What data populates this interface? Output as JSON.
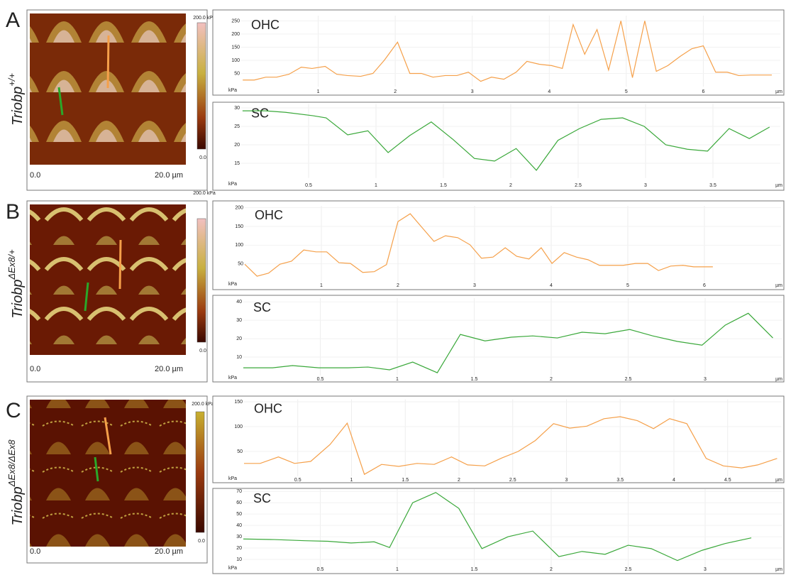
{
  "panels": [
    {
      "label": "A",
      "genotype": {
        "gene": "Triobp",
        "allele": "+/+"
      },
      "colorbar_max": "200.0 kPa",
      "colorbar_min": "0.0",
      "scale_start": "0.0",
      "scale_end": "20.0 µm"
    },
    {
      "label": "B",
      "genotype": {
        "gene": "Triobp",
        "allele": "ΔEx8/+"
      },
      "colorbar_max": "200.0 kPa",
      "colorbar_min": "0.0",
      "scale_start": "0.0",
      "scale_end": "20.0 µm"
    },
    {
      "label": "C",
      "genotype": {
        "gene": "Triobp",
        "allele": "ΔEx8/ΔEx8"
      },
      "colorbar_max": "200.0 kPa",
      "colorbar_min": "0.0",
      "scale_start": "0.0",
      "scale_end": "20.0 µm"
    }
  ],
  "chart_data": [
    {
      "type": "line",
      "title": "OHC",
      "xlabel": "µm",
      "ylabel": "kPa",
      "color": "#f5a04a",
      "grid": true,
      "x": [
        0.02,
        0.17,
        0.32,
        0.46,
        0.62,
        0.78,
        0.92,
        1.09,
        1.24,
        1.38,
        1.55,
        1.71,
        1.86,
        2.03,
        2.19,
        2.34,
        2.49,
        2.65,
        2.8,
        2.95,
        3.11,
        3.25,
        3.41,
        3.57,
        3.71,
        3.87,
        4.03,
        4.17,
        4.31,
        4.46,
        4.62,
        4.77,
        4.93,
        5.08,
        5.24,
        5.39,
        5.54,
        5.7,
        5.85,
        6.0,
        6.16,
        6.31,
        6.46,
        6.62,
        6.89
      ],
      "values": [
        25,
        25,
        36,
        36,
        47,
        74,
        69,
        77,
        47,
        42,
        39,
        50,
        101,
        169,
        50,
        50,
        36,
        42,
        42,
        55,
        20,
        36,
        28,
        55,
        96,
        85,
        80,
        69,
        236,
        123,
        217,
        63,
        250,
        34,
        250,
        58,
        80,
        115,
        144,
        155,
        55,
        55,
        42,
        44,
        44
      ],
      "xlim": [
        0,
        7
      ],
      "xticks": [
        1,
        2,
        3,
        4,
        5,
        6
      ],
      "ylim": [
        0,
        270
      ],
      "yticks": [
        50,
        100,
        150,
        200,
        250
      ]
    },
    {
      "type": "line",
      "title": "SC",
      "xlabel": "µm",
      "ylabel": "kPa",
      "color": "#3aa83a",
      "grid": true,
      "x": [
        0.01,
        0.18,
        0.33,
        0.53,
        0.63,
        0.79,
        0.94,
        1.09,
        1.25,
        1.41,
        1.57,
        1.73,
        1.88,
        2.04,
        2.19,
        2.35,
        2.51,
        2.67,
        2.83,
        2.99,
        3.15,
        3.31,
        3.46,
        3.62,
        3.77,
        3.92
      ],
      "values": [
        29.2,
        29.2,
        28.8,
        27.9,
        27.3,
        22.7,
        23.8,
        17.9,
        22.5,
        26.2,
        21.5,
        16.3,
        15.6,
        19.0,
        13.1,
        21.2,
        24.4,
        26.9,
        27.3,
        25.0,
        20.0,
        18.8,
        18.3,
        24.4,
        21.7,
        24.8
      ],
      "xlim": [
        0,
        4
      ],
      "xticks": [
        0.5,
        1,
        1.5,
        2,
        2.5,
        3,
        3.5
      ],
      "ylim": [
        11,
        31
      ],
      "yticks": [
        15,
        20,
        25,
        30
      ]
    },
    {
      "type": "line",
      "title": "OHC",
      "xlabel": "µm",
      "ylabel": "kPa",
      "color": "#f5a04a",
      "grid": true,
      "x": [
        0,
        0.16,
        0.31,
        0.46,
        0.61,
        0.77,
        0.93,
        1.07,
        1.23,
        1.38,
        1.54,
        1.69,
        1.85,
        2.0,
        2.16,
        2.31,
        2.47,
        2.62,
        2.78,
        2.94,
        3.09,
        3.24,
        3.4,
        3.55,
        3.71,
        3.87,
        4.01,
        4.17,
        4.33,
        4.48,
        4.63,
        4.79,
        4.94,
        5.1,
        5.26,
        5.4,
        5.56,
        5.72,
        5.86,
        6.11
      ],
      "values": [
        49,
        17,
        25,
        49,
        57,
        87,
        82,
        82,
        53,
        51,
        27,
        29,
        48,
        163,
        184,
        148,
        110,
        125,
        120,
        101,
        65,
        68,
        93,
        70,
        63,
        93,
        51,
        80,
        68,
        61,
        46,
        46,
        46,
        51,
        51,
        32,
        44,
        46,
        42,
        42
      ],
      "xlim": [
        0,
        7
      ],
      "xticks": [
        1,
        2,
        3,
        4,
        5,
        6
      ],
      "ylim": [
        0,
        205
      ],
      "yticks": [
        50,
        100,
        150,
        200
      ]
    },
    {
      "type": "line",
      "title": "SC",
      "xlabel": "µm",
      "ylabel": "kPa",
      "color": "#3aa83a",
      "grid": true,
      "x": [
        0,
        0.19,
        0.32,
        0.49,
        0.68,
        0.81,
        0.95,
        1.1,
        1.26,
        1.41,
        1.57,
        1.74,
        1.88,
        2.04,
        2.2,
        2.35,
        2.51,
        2.66,
        2.82,
        2.98,
        3.13,
        3.28,
        3.44
      ],
      "values": [
        4.2,
        4.2,
        5.4,
        4.2,
        4.2,
        4.6,
        3.1,
        7.3,
        1.5,
        22.3,
        18.8,
        20.8,
        21.5,
        20.4,
        23.5,
        22.7,
        25.0,
        21.5,
        18.5,
        16.5,
        27.3,
        33.8,
        20.4
      ],
      "xlim": [
        0,
        3.5
      ],
      "xticks": [
        0.5,
        1,
        1.5,
        2,
        2.5,
        3
      ],
      "ylim": [
        0,
        42
      ],
      "yticks": [
        10,
        20,
        30,
        40
      ]
    },
    {
      "type": "line",
      "title": "OHC",
      "xlabel": "µm",
      "ylabel": "kPa",
      "color": "#f5a04a",
      "grid": true,
      "x": [
        0,
        0.15,
        0.32,
        0.47,
        0.62,
        0.8,
        0.96,
        1.12,
        1.28,
        1.44,
        1.61,
        1.77,
        1.93,
        2.08,
        2.24,
        2.4,
        2.55,
        2.71,
        2.88,
        3.03,
        3.19,
        3.35,
        3.5,
        3.66,
        3.81,
        3.96,
        4.12,
        4.3,
        4.46,
        4.63,
        4.78,
        4.96
      ],
      "values": [
        26,
        26,
        39,
        26,
        30,
        64,
        107,
        4,
        24,
        20,
        26,
        24,
        39,
        23,
        21,
        37,
        50,
        72,
        106,
        97,
        101,
        116,
        120,
        112,
        96,
        116,
        106,
        36,
        21,
        17,
        23,
        36
      ],
      "xlim": [
        0,
        5
      ],
      "xticks": [
        0.5,
        1,
        1.5,
        2,
        2.5,
        3,
        3.5,
        4,
        4.5
      ],
      "ylim": [
        0,
        155
      ],
      "yticks": [
        50,
        100,
        150
      ]
    },
    {
      "type": "line",
      "title": "SC",
      "xlabel": "µm",
      "ylabel": "kPa",
      "color": "#3aa83a",
      "grid": true,
      "x": [
        0,
        0.2,
        0.4,
        0.55,
        0.7,
        0.85,
        0.95,
        1.1,
        1.25,
        1.4,
        1.55,
        1.72,
        1.88,
        2.05,
        2.2,
        2.35,
        2.5,
        2.65,
        2.82,
        2.98,
        3.13,
        3.3
      ],
      "values": [
        28,
        27.5,
        26.5,
        26,
        24.5,
        25.5,
        20.5,
        60,
        69,
        55,
        19.5,
        30,
        35,
        12.5,
        17,
        14.5,
        22.5,
        19.5,
        9,
        18,
        24,
        29
      ],
      "xlim": [
        0,
        3.5
      ],
      "xticks": [
        0.5,
        1,
        1.5,
        2,
        2.5,
        3
      ],
      "ylim": [
        0,
        72
      ],
      "yticks": [
        10,
        20,
        30,
        40,
        50,
        60,
        70
      ]
    }
  ]
}
